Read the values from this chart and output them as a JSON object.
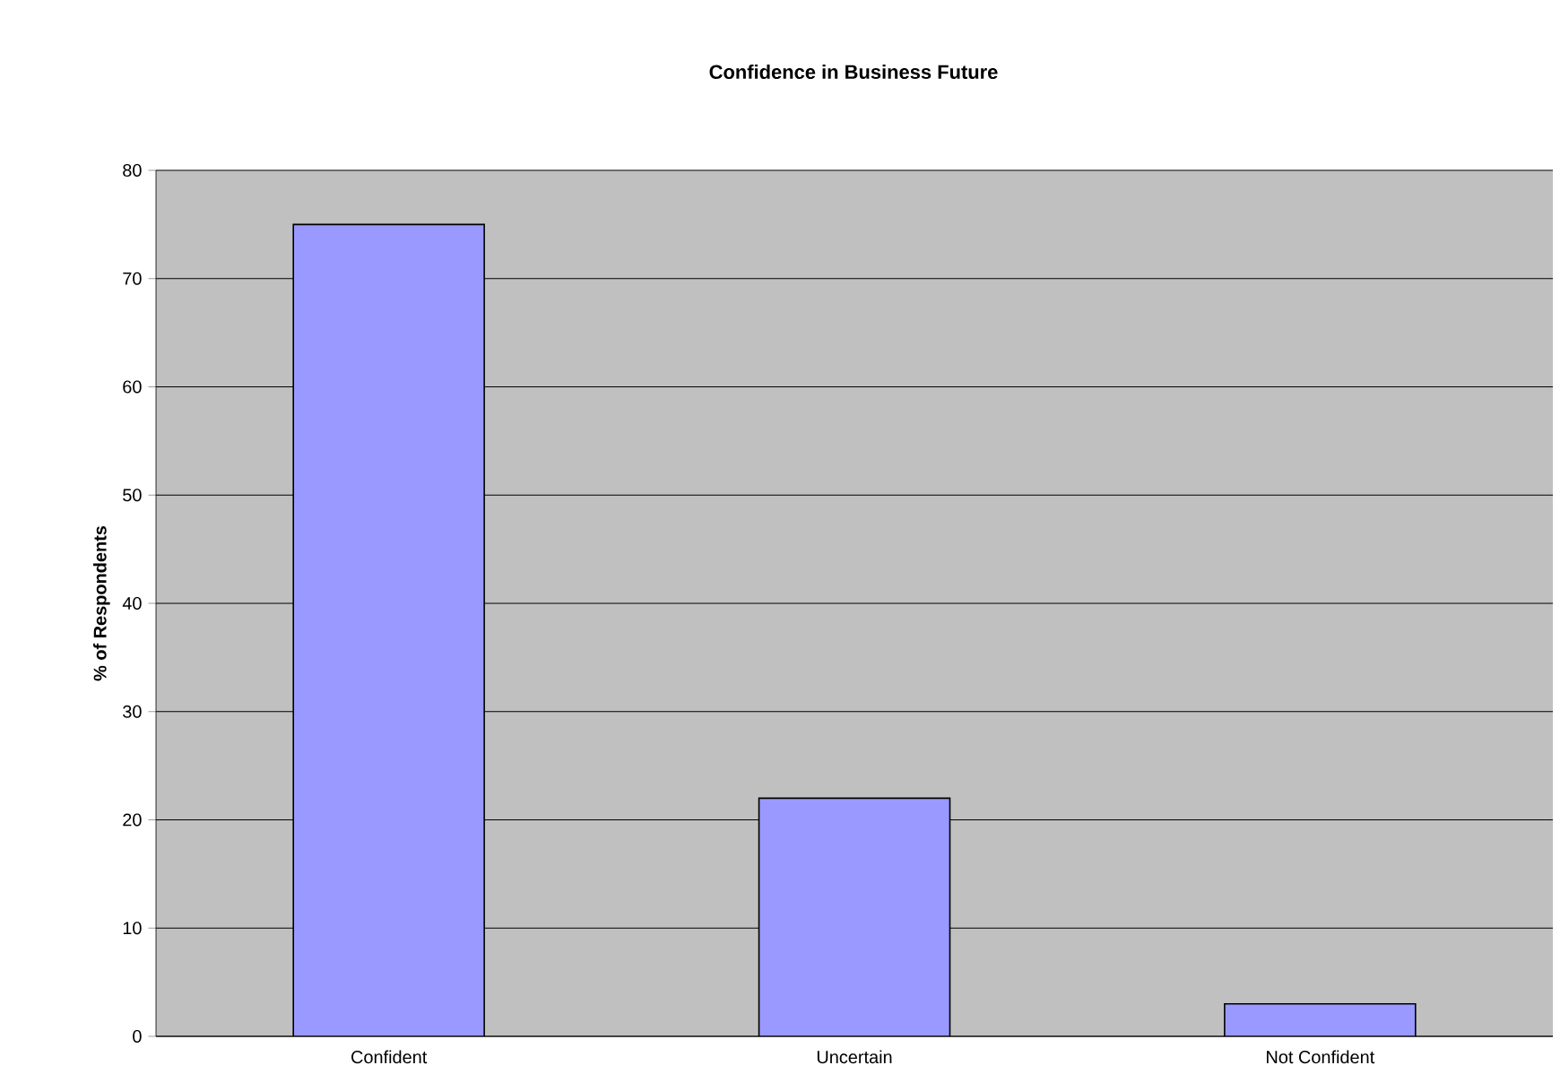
{
  "chart_data": {
    "type": "bar",
    "title": "Confidence in Business Future",
    "ylabel": "% of Respondents",
    "categories": [
      "Confident",
      "Uncertain",
      "Not Confident"
    ],
    "values": [
      75,
      22,
      3
    ],
    "color": "#9999ff",
    "ylim": [
      0,
      80
    ],
    "yticks": [
      0,
      10,
      20,
      30,
      40,
      50,
      60,
      70,
      80
    ],
    "grid": "y"
  }
}
